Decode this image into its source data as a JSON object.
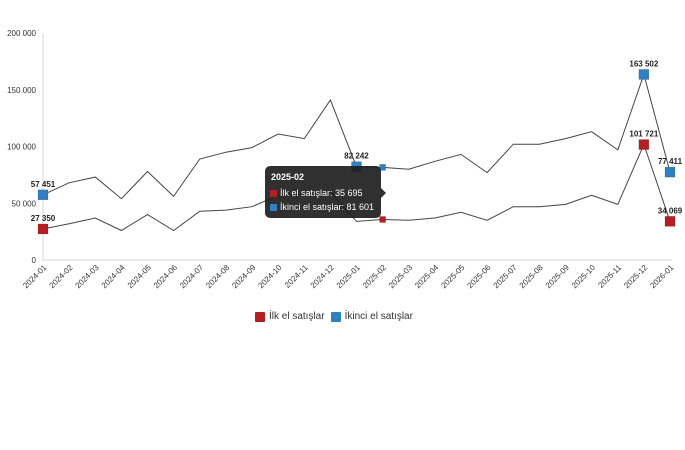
{
  "chart_data": {
    "type": "line",
    "title": "",
    "xlabel": "",
    "ylabel": "",
    "ylim": [
      0,
      200000
    ],
    "yticks": [
      0,
      50000,
      100000,
      150000,
      200000
    ],
    "ytick_labels": [
      "0",
      "50 000",
      "100 000",
      "150 000",
      "200 000"
    ],
    "grid": false,
    "legend_position": "bottom",
    "categories": [
      "2024-01",
      "2024-02",
      "2024-03",
      "2024-04",
      "2024-05",
      "2024-06",
      "2024-07",
      "2024-08",
      "2024-09",
      "2024-10",
      "2024-11",
      "2024-12",
      "2025-01",
      "2025-02",
      "2025-03",
      "2025-04",
      "2025-05",
      "2025-06",
      "2025-07",
      "2025-08",
      "2025-09",
      "2025-10",
      "2025-11",
      "2025-12",
      "2026-01"
    ],
    "series": [
      {
        "name": "İlk el satışlar",
        "color": "#b41f24",
        "values": [
          27350,
          32000,
          37000,
          26000,
          40000,
          26000,
          43000,
          44000,
          47000,
          57000,
          58000,
          60000,
          34000,
          35695,
          35000,
          37000,
          42000,
          35000,
          47000,
          47000,
          49000,
          57000,
          49000,
          101721,
          34069
        ]
      },
      {
        "name": "İkinci el satışlar",
        "color": "#2f7fc1",
        "values": [
          57451,
          68000,
          73000,
          54000,
          78000,
          56000,
          89000,
          95000,
          99000,
          111000,
          107000,
          141000,
          82242,
          81601,
          80000,
          87000,
          93000,
          77000,
          102000,
          102000,
          107000,
          113000,
          97000,
          163502,
          77411
        ]
      }
    ],
    "annotations": [
      {
        "series": 1,
        "index": 0,
        "label": "57 451"
      },
      {
        "series": 0,
        "index": 0,
        "label": "27 350"
      },
      {
        "series": 1,
        "index": 12,
        "label": "82 242"
      },
      {
        "series": 1,
        "index": 23,
        "label": "163 502"
      },
      {
        "series": 0,
        "index": 23,
        "label": "101 721"
      },
      {
        "series": 1,
        "index": 24,
        "label": "77 411"
      },
      {
        "series": 0,
        "index": 24,
        "label": "34 069"
      }
    ]
  },
  "tooltip": {
    "title": "2025-02",
    "rows": [
      {
        "label": "İlk el satışlar: 35 695",
        "color": "#b41f24"
      },
      {
        "label": "İkinci el satışlar: 81 601",
        "color": "#2f7fc1"
      }
    ]
  },
  "legend": {
    "items": [
      {
        "label": "İlk el satışlar",
        "color": "#b41f24"
      },
      {
        "label": "İkinci el satışlar",
        "color": "#2f7fc1"
      }
    ]
  }
}
